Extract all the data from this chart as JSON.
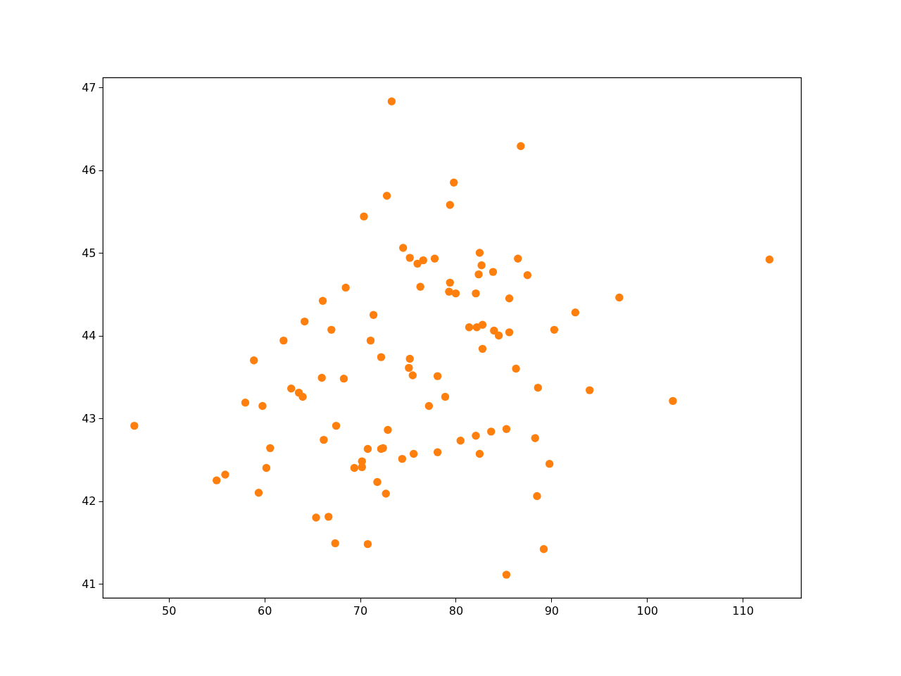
{
  "chart_data": {
    "type": "scatter",
    "marker": "circle",
    "grid": false,
    "xlim": [
      43.1,
      116.1
    ],
    "ylim": [
      40.83,
      47.12
    ],
    "xticks": [
      50,
      60,
      70,
      80,
      90,
      100,
      110
    ],
    "yticks": [
      41,
      42,
      43,
      44,
      45,
      46,
      47
    ],
    "x": [
      46.4,
      55.0,
      55.9,
      58.0,
      58.9,
      59.4,
      59.8,
      60.2,
      60.6,
      62.0,
      62.8,
      63.6,
      64.0,
      64.2,
      65.4,
      66.1,
      66.0,
      66.2,
      66.7,
      67.0,
      67.4,
      67.5,
      68.3,
      68.5,
      69.4,
      70.2,
      70.2,
      70.4,
      70.8,
      70.8,
      71.1,
      71.4,
      71.8,
      72.2,
      72.2,
      72.4,
      72.7,
      72.8,
      72.9,
      73.3,
      74.4,
      74.5,
      75.1,
      75.2,
      75.2,
      75.5,
      75.6,
      76.0,
      76.3,
      76.6,
      77.2,
      77.8,
      78.1,
      78.1,
      78.9,
      79.3,
      79.4,
      79.4,
      79.8,
      80.0,
      80.5,
      81.4,
      82.1,
      82.1,
      82.2,
      82.4,
      82.5,
      82.5,
      82.7,
      82.8,
      82.8,
      83.7,
      83.9,
      84.0,
      84.5,
      85.3,
      85.3,
      85.6,
      85.6,
      86.3,
      86.5,
      86.8,
      87.5,
      88.3,
      88.5,
      88.6,
      89.2,
      89.8,
      90.3,
      92.5,
      94.0,
      97.1,
      102.7,
      112.8
    ],
    "series": [
      {
        "color": "#ff7f0e",
        "values": [
          42.91,
          42.25,
          42.32,
          43.19,
          43.7,
          42.1,
          43.15,
          42.4,
          42.64,
          43.94,
          43.36,
          43.31,
          43.26,
          44.17,
          41.8,
          44.42,
          43.49,
          42.74,
          41.81,
          44.07,
          41.49,
          42.91,
          43.48,
          44.58,
          42.4,
          42.48,
          42.41,
          45.44,
          42.63,
          41.48,
          43.94,
          44.25,
          42.23,
          43.74,
          42.63,
          42.64,
          42.09,
          45.69,
          42.86,
          46.83,
          42.51,
          45.06,
          43.61,
          44.94,
          43.72,
          43.52,
          42.57,
          44.87,
          44.59,
          44.91,
          43.15,
          44.93,
          42.59,
          43.51,
          43.26,
          44.53,
          44.64,
          45.58,
          45.85,
          44.51,
          42.73,
          44.1,
          44.51,
          42.79,
          44.1,
          44.74,
          45.0,
          42.57,
          44.85,
          44.13,
          43.84,
          42.84,
          44.77,
          44.06,
          44.0,
          42.87,
          41.11,
          44.45,
          44.04,
          43.6,
          44.93,
          46.29,
          44.73,
          42.76,
          42.06,
          43.37,
          41.42,
          42.45,
          44.07,
          44.28,
          43.34,
          44.46,
          43.21,
          44.92
        ]
      }
    ]
  }
}
